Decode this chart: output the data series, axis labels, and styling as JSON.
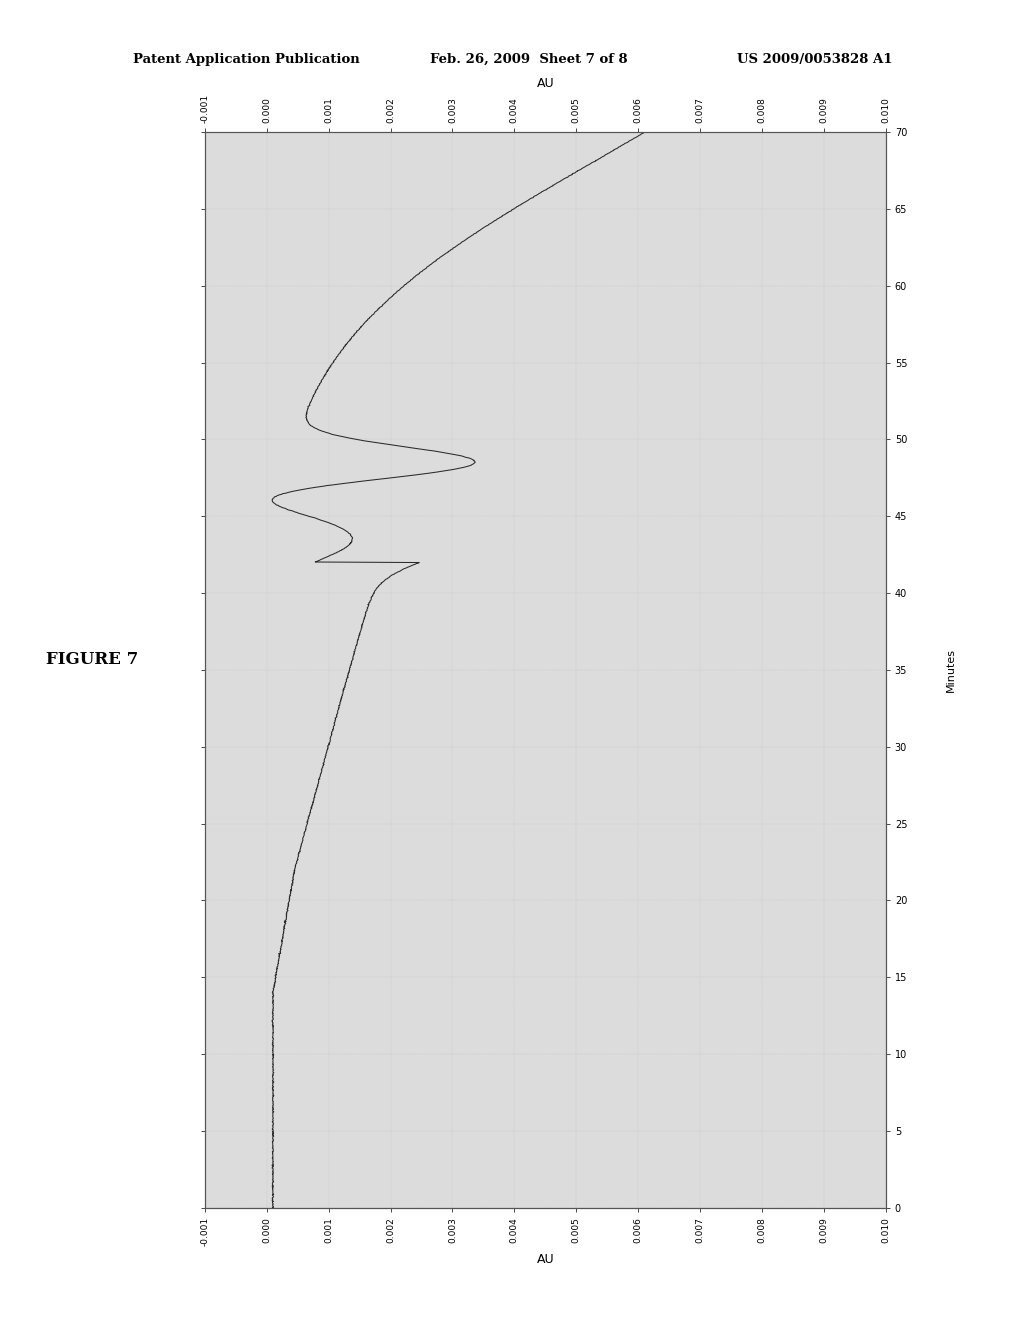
{
  "title_line1": "Patent Application Publication",
  "title_line2": "Feb. 26, 2009  Sheet 7 of 8",
  "title_line3": "US 2009/0053828 A1",
  "figure_label": "FIGURE 7",
  "xlabel": "AU",
  "ylabel": "Minutes",
  "x_min": -0.001,
  "x_max": 0.01,
  "y_min": 0,
  "y_max": 70,
  "x_ticks": [
    -0.001,
    0.0,
    0.001,
    0.002,
    0.003,
    0.004,
    0.005,
    0.006,
    0.007,
    0.008,
    0.009,
    0.01
  ],
  "y_ticks": [
    0,
    5,
    10,
    15,
    20,
    25,
    30,
    35,
    40,
    45,
    50,
    55,
    60,
    65,
    70
  ],
  "background_color": "#dcdcdc",
  "line_color": "#333333",
  "curve_color": "#2a2a2a",
  "header_bg": "#ffffff",
  "plot_bg": "#dcdcdc"
}
